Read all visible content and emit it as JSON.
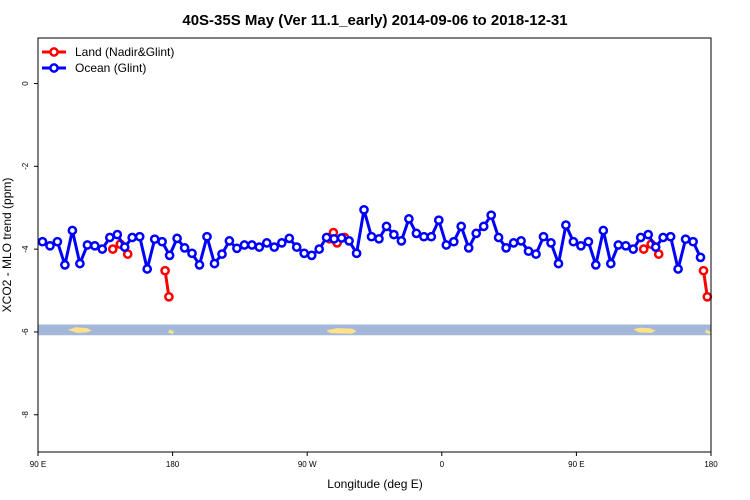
{
  "chart_data": {
    "type": "line",
    "title": "40S-35S May (Ver 11.1_early)   2014-09-06 to 2018-12-31",
    "xlabel": "Longitude (deg E)",
    "ylabel": "XCO2 - MLO trend (ppm)",
    "xlim": [
      90,
      540
    ],
    "ylim": [
      -8.9,
      1.1
    ],
    "x_ticks": [
      {
        "value": 90,
        "label": "90 E"
      },
      {
        "value": 180,
        "label": "180"
      },
      {
        "value": 270,
        "label": "90 W"
      },
      {
        "value": 360,
        "label": "0"
      },
      {
        "value": 450,
        "label": "90 E"
      },
      {
        "value": 540,
        "label": "180"
      }
    ],
    "y_ticks": [
      {
        "value": 0,
        "label": "0"
      },
      {
        "value": -2,
        "label": "-2"
      },
      {
        "value": -4,
        "label": "-4"
      },
      {
        "value": -6,
        "label": "-6"
      },
      {
        "value": -8,
        "label": "-8"
      }
    ],
    "grid": false,
    "legend_position": "top-left",
    "series": [
      {
        "name": "Land (Nadir&Glint)",
        "color": "#ff0000",
        "segments": [
          [
            [
              140,
              -4.0
            ],
            [
              145,
              -3.88
            ],
            [
              150,
              -4.12
            ]
          ],
          [
            [
              175,
              -4.52
            ],
            [
              177.5,
              -5.15
            ]
          ],
          [
            [
              285,
              -3.75
            ],
            [
              287.5,
              -3.6
            ],
            [
              290,
              -3.85
            ],
            [
              295,
              -3.72
            ]
          ],
          [
            [
              495,
              -4.0
            ],
            [
              500,
              -3.88
            ],
            [
              505,
              -4.12
            ]
          ],
          [
            [
              535,
              -4.52
            ],
            [
              537.5,
              -5.15
            ]
          ]
        ]
      },
      {
        "name": "Ocean (Glint)",
        "color": "#0000ff",
        "points": [
          [
            93,
            -3.82
          ],
          [
            98,
            -3.92
          ],
          [
            103,
            -3.82
          ],
          [
            108,
            -4.38
          ],
          [
            113,
            -3.55
          ],
          [
            118,
            -4.35
          ],
          [
            123,
            -3.9
          ],
          [
            128,
            -3.92
          ],
          [
            133,
            -4.0
          ],
          [
            138,
            -3.72
          ],
          [
            143,
            -3.65
          ],
          [
            148,
            -3.95
          ],
          [
            153,
            -3.72
          ],
          [
            158,
            -3.7
          ],
          [
            163,
            -4.48
          ],
          [
            168,
            -3.76
          ],
          [
            173,
            -3.82
          ],
          [
            178,
            -4.15
          ],
          [
            183,
            -3.74
          ],
          [
            188,
            -3.97
          ],
          [
            193,
            -4.1
          ],
          [
            198,
            -4.38
          ],
          [
            203,
            -3.7
          ],
          [
            208,
            -4.35
          ],
          [
            213,
            -4.12
          ],
          [
            218,
            -3.8
          ],
          [
            223,
            -3.98
          ],
          [
            228,
            -3.9
          ],
          [
            233,
            -3.9
          ],
          [
            238,
            -3.95
          ],
          [
            243,
            -3.85
          ],
          [
            248,
            -3.95
          ],
          [
            253,
            -3.85
          ],
          [
            258,
            -3.74
          ],
          [
            263,
            -3.95
          ],
          [
            268,
            -4.1
          ],
          [
            273,
            -4.15
          ],
          [
            278,
            -4.0
          ],
          [
            283,
            -3.72
          ],
          [
            288,
            -3.75
          ],
          [
            293,
            -3.73
          ],
          [
            298,
            -3.8
          ],
          [
            303,
            -4.1
          ],
          [
            308,
            -3.05
          ],
          [
            313,
            -3.7
          ],
          [
            318,
            -3.75
          ],
          [
            323,
            -3.45
          ],
          [
            328,
            -3.65
          ],
          [
            333,
            -3.8
          ],
          [
            338,
            -3.27
          ],
          [
            343,
            -3.62
          ],
          [
            348,
            -3.7
          ],
          [
            353,
            -3.7
          ],
          [
            358,
            -3.3
          ],
          [
            363,
            -3.9
          ],
          [
            368,
            -3.82
          ],
          [
            373,
            -3.45
          ],
          [
            378,
            -3.97
          ],
          [
            383,
            -3.62
          ],
          [
            388,
            -3.45
          ],
          [
            393,
            -3.18
          ],
          [
            398,
            -3.72
          ],
          [
            403,
            -3.97
          ],
          [
            408,
            -3.85
          ],
          [
            413,
            -3.8
          ],
          [
            418,
            -4.05
          ],
          [
            423,
            -4.12
          ],
          [
            428,
            -3.7
          ],
          [
            433,
            -3.85
          ],
          [
            438,
            -4.35
          ],
          [
            443,
            -3.42
          ],
          [
            448,
            -3.82
          ],
          [
            453,
            -3.92
          ],
          [
            458,
            -3.82
          ],
          [
            463,
            -4.38
          ],
          [
            468,
            -3.55
          ],
          [
            473,
            -4.35
          ],
          [
            478,
            -3.9
          ],
          [
            483,
            -3.92
          ],
          [
            488,
            -4.0
          ],
          [
            493,
            -3.72
          ],
          [
            498,
            -3.65
          ],
          [
            503,
            -3.95
          ],
          [
            508,
            -3.72
          ],
          [
            513,
            -3.7
          ],
          [
            518,
            -4.48
          ],
          [
            523,
            -3.76
          ],
          [
            528,
            -3.82
          ],
          [
            533,
            -4.2
          ]
        ]
      }
    ],
    "land_strip": {
      "y_center": -5.95,
      "half_height": 0.13,
      "ocean_color": "#a3b8d8",
      "land_color": "#ffe28a"
    }
  }
}
